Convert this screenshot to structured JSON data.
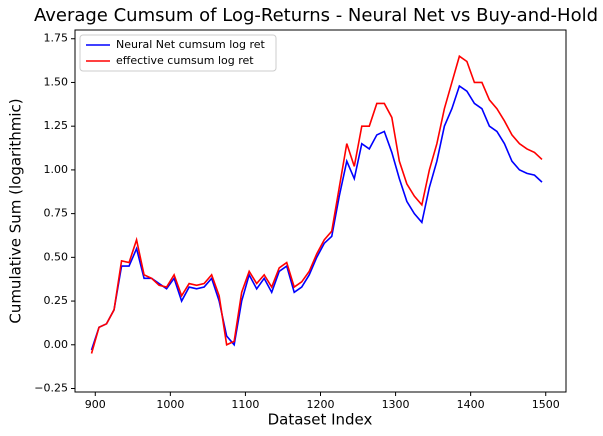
{
  "chart_data": {
    "type": "line",
    "title": "Average Cumsum of Log-Returns - Neural Net vs Buy-and-Hold",
    "xlabel": "Dataset Index",
    "ylabel": "Cumulative Sum (logarithmic)",
    "x": [
      895,
      905,
      915,
      925,
      935,
      945,
      955,
      965,
      975,
      985,
      995,
      1005,
      1015,
      1025,
      1035,
      1045,
      1055,
      1065,
      1075,
      1085,
      1095,
      1105,
      1115,
      1125,
      1135,
      1145,
      1155,
      1165,
      1175,
      1185,
      1195,
      1205,
      1215,
      1225,
      1235,
      1245,
      1255,
      1265,
      1275,
      1285,
      1295,
      1305,
      1315,
      1325,
      1335,
      1345,
      1355,
      1365,
      1375,
      1385,
      1395,
      1405,
      1415,
      1425,
      1435,
      1445,
      1455,
      1465,
      1475,
      1485,
      1495
    ],
    "series": [
      {
        "name": "Neural Net cumsum log ret",
        "color": "#0000ff",
        "values": [
          -0.03,
          0.1,
          0.12,
          0.2,
          0.45,
          0.45,
          0.55,
          0.38,
          0.38,
          0.35,
          0.32,
          0.38,
          0.25,
          0.33,
          0.32,
          0.33,
          0.38,
          0.25,
          0.05,
          0.0,
          0.25,
          0.4,
          0.32,
          0.38,
          0.3,
          0.42,
          0.45,
          0.3,
          0.33,
          0.4,
          0.5,
          0.58,
          0.62,
          0.85,
          1.05,
          0.95,
          1.15,
          1.12,
          1.2,
          1.22,
          1.1,
          0.95,
          0.82,
          0.75,
          0.7,
          0.9,
          1.05,
          1.25,
          1.35,
          1.48,
          1.45,
          1.38,
          1.35,
          1.25,
          1.22,
          1.15,
          1.05,
          1.0,
          0.98,
          0.97,
          0.93
        ]
      },
      {
        "name": "effective cumsum log ret",
        "color": "#ff0000",
        "values": [
          -0.05,
          0.1,
          0.12,
          0.2,
          0.48,
          0.47,
          0.6,
          0.4,
          0.38,
          0.34,
          0.33,
          0.4,
          0.28,
          0.35,
          0.34,
          0.35,
          0.4,
          0.28,
          0.0,
          0.02,
          0.3,
          0.42,
          0.35,
          0.4,
          0.33,
          0.44,
          0.47,
          0.33,
          0.36,
          0.42,
          0.52,
          0.6,
          0.65,
          0.9,
          1.15,
          1.02,
          1.25,
          1.25,
          1.38,
          1.38,
          1.3,
          1.05,
          0.92,
          0.85,
          0.8,
          1.0,
          1.15,
          1.35,
          1.5,
          1.65,
          1.62,
          1.5,
          1.5,
          1.4,
          1.35,
          1.28,
          1.2,
          1.15,
          1.12,
          1.1,
          1.06
        ]
      }
    ],
    "xlim": [
      873,
      1527
    ],
    "xticks": [
      900,
      1000,
      1100,
      1200,
      1300,
      1400,
      1500
    ],
    "ylim": [
      -0.27,
      1.8
    ],
    "yticks": [
      {
        "value": -0.25,
        "label": "−0.25"
      },
      {
        "value": 0,
        "label": "0.00"
      },
      {
        "value": 0.25,
        "label": "0.25"
      },
      {
        "value": 0.5,
        "label": "0.50"
      },
      {
        "value": 0.75,
        "label": "0.75"
      },
      {
        "value": 1,
        "label": "1.00"
      },
      {
        "value": 1.25,
        "label": "1.25"
      },
      {
        "value": 1.5,
        "label": "1.50"
      },
      {
        "value": 1.75,
        "label": "1.75"
      }
    ],
    "legend": "upper left"
  }
}
